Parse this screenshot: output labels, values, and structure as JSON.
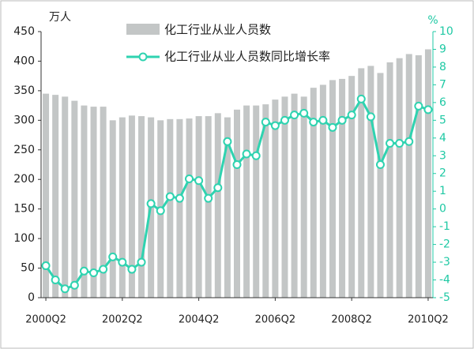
{
  "chart_data": {
    "type": "bar-line",
    "y_label": "万人",
    "y2_label": "%",
    "categories": [
      "2000Q2",
      null,
      null,
      null,
      null,
      null,
      null,
      null,
      "2002Q2",
      null,
      null,
      null,
      null,
      null,
      null,
      null,
      "2004Q2",
      null,
      null,
      null,
      null,
      null,
      null,
      null,
      "2006Q2",
      null,
      null,
      null,
      null,
      null,
      null,
      null,
      "2008Q2",
      null,
      null,
      null,
      null,
      null,
      null,
      null,
      "2010Q2"
    ],
    "series": [
      {
        "name": "化工行业从业人员数",
        "color": "#c3c6c6",
        "values": [
          345,
          343,
          340,
          333,
          325,
          323,
          323,
          300,
          305,
          308,
          307,
          305,
          300,
          302,
          302,
          303,
          307,
          307,
          312,
          305,
          318,
          325,
          325,
          327,
          335,
          340,
          345,
          340,
          355,
          360,
          368,
          370,
          375,
          388,
          392,
          380,
          398,
          405,
          412,
          410,
          420
        ]
      },
      {
        "name": "化工行业从业人员数同比增长率",
        "color": "#2fd3b0",
        "axis": "y2",
        "values": [
          -3.2,
          -4.0,
          -4.5,
          -4.3,
          -3.5,
          -3.6,
          -3.4,
          -2.7,
          -3.0,
          -3.4,
          -3.0,
          0.3,
          -0.1,
          0.7,
          0.6,
          1.7,
          1.6,
          0.6,
          1.2,
          3.8,
          2.5,
          3.1,
          3.0,
          4.9,
          4.7,
          5.0,
          5.3,
          5.4,
          4.9,
          5.0,
          4.6,
          5.0,
          5.3,
          6.2,
          5.2,
          2.5,
          3.7,
          3.7,
          3.8,
          5.8,
          5.6
        ]
      }
    ],
    "ylim": [
      0,
      450
    ],
    "yticks": [
      0,
      50,
      100,
      150,
      200,
      250,
      300,
      350,
      400,
      450
    ],
    "y2lim": [
      -5,
      10
    ],
    "y2ticks": [
      -5,
      -4,
      -3,
      -2,
      -1,
      0,
      1,
      2,
      3,
      4,
      5,
      6,
      7,
      8,
      9,
      10
    ]
  }
}
